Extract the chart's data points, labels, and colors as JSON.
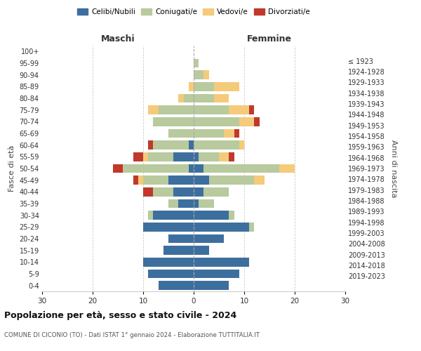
{
  "age_groups": [
    "0-4",
    "5-9",
    "10-14",
    "15-19",
    "20-24",
    "25-29",
    "30-34",
    "35-39",
    "40-44",
    "45-49",
    "50-54",
    "55-59",
    "60-64",
    "65-69",
    "70-74",
    "75-79",
    "80-84",
    "85-89",
    "90-94",
    "95-99",
    "100+"
  ],
  "birth_years": [
    "2019-2023",
    "2014-2018",
    "2009-2013",
    "2004-2008",
    "1999-2003",
    "1994-1998",
    "1989-1993",
    "1984-1988",
    "1979-1983",
    "1974-1978",
    "1969-1973",
    "1964-1968",
    "1959-1963",
    "1954-1958",
    "1949-1953",
    "1944-1948",
    "1939-1943",
    "1934-1938",
    "1929-1933",
    "1924-1928",
    "≤ 1923"
  ],
  "maschi": {
    "celibi": [
      7,
      9,
      10,
      6,
      5,
      10,
      8,
      3,
      4,
      5,
      1,
      4,
      1,
      0,
      0,
      0,
      0,
      0,
      0,
      0,
      0
    ],
    "coniugati": [
      0,
      0,
      0,
      0,
      0,
      0,
      1,
      2,
      4,
      5,
      13,
      5,
      7,
      5,
      8,
      7,
      2,
      0,
      0,
      0,
      0
    ],
    "vedovi": [
      0,
      0,
      0,
      0,
      0,
      0,
      0,
      0,
      0,
      1,
      0,
      1,
      0,
      0,
      0,
      2,
      1,
      1,
      0,
      0,
      0
    ],
    "divorziati": [
      0,
      0,
      0,
      0,
      0,
      0,
      0,
      0,
      2,
      1,
      2,
      2,
      1,
      0,
      0,
      0,
      0,
      0,
      0,
      0,
      0
    ]
  },
  "femmine": {
    "nubili": [
      7,
      9,
      11,
      3,
      6,
      11,
      7,
      1,
      2,
      3,
      2,
      1,
      0,
      0,
      0,
      0,
      0,
      0,
      0,
      0,
      0
    ],
    "coniugate": [
      0,
      0,
      0,
      0,
      0,
      1,
      1,
      3,
      5,
      9,
      15,
      4,
      9,
      6,
      9,
      7,
      4,
      4,
      2,
      1,
      0
    ],
    "vedove": [
      0,
      0,
      0,
      0,
      0,
      0,
      0,
      0,
      0,
      2,
      3,
      2,
      1,
      2,
      3,
      4,
      3,
      5,
      1,
      0,
      0
    ],
    "divorziate": [
      0,
      0,
      0,
      0,
      0,
      0,
      0,
      0,
      0,
      0,
      0,
      1,
      0,
      1,
      1,
      1,
      0,
      0,
      0,
      0,
      0
    ]
  },
  "colors": {
    "celibi": "#3d6f9e",
    "coniugati": "#b8ca9e",
    "vedovi": "#f5ca7a",
    "divorziati": "#c0392b"
  },
  "xlim": 30,
  "title": "Popolazione per età, sesso e stato civile - 2024",
  "subtitle": "COMUNE DI CICONIO (TO) - Dati ISTAT 1° gennaio 2024 - Elaborazione TUTTITALIA.IT",
  "ylabel_left": "Fasce di età",
  "ylabel_right": "Anni di nascita",
  "xlabel_left": "Maschi",
  "xlabel_right": "Femmine"
}
